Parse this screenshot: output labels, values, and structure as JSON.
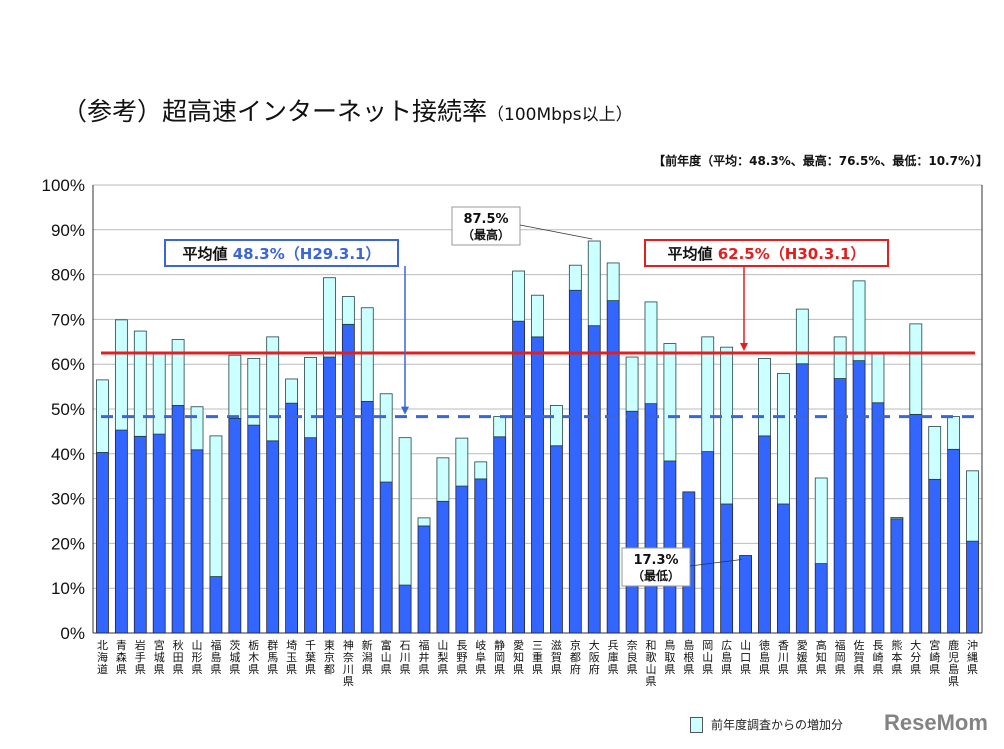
{
  "title": "（参考）超高速インターネット接続率",
  "title_suffix": "（100Mbps以上）",
  "note": "【前年度（平均：48.3%、最高：76.5%、最低：10.7%）】",
  "legend_label": "前年度調査からの増加分",
  "watermark": "ReseMom",
  "colors": {
    "base": "#3366ff",
    "increase": "#ccffff",
    "avg_current": "#e02020",
    "avg_prev": "#3a66d8"
  },
  "chart_data": {
    "type": "bar",
    "stacked": true,
    "ylim": [
      0,
      100
    ],
    "yticks": [
      "0%",
      "10%",
      "20%",
      "30%",
      "40%",
      "50%",
      "60%",
      "70%",
      "80%",
      "90%",
      "100%"
    ],
    "grid": true,
    "categories": [
      "北海道",
      "青森県",
      "岩手県",
      "宮城県",
      "秋田県",
      "山形県",
      "福島県",
      "茨城県",
      "栃木県",
      "群馬県",
      "埼玉県",
      "千葉県",
      "東京都",
      "神奈川県",
      "新潟県",
      "富山県",
      "石川県",
      "福井県",
      "山梨県",
      "長野県",
      "岐阜県",
      "静岡県",
      "愛知県",
      "三重県",
      "滋賀県",
      "京都府",
      "大阪府",
      "兵庫県",
      "奈良県",
      "和歌山県",
      "鳥取県",
      "島根県",
      "岡山県",
      "広島県",
      "山口県",
      "徳島県",
      "香川県",
      "愛媛県",
      "高知県",
      "福岡県",
      "佐賀県",
      "長崎県",
      "熊本県",
      "大分県",
      "宮崎県",
      "鹿児島県",
      "沖縄県"
    ],
    "series": [
      {
        "values": [
          40.3,
          45.3,
          43.9,
          44.4,
          50.8,
          40.9,
          12.6,
          47.9,
          46.4,
          42.9,
          51.3,
          43.6,
          61.6,
          68.9,
          51.7,
          33.7,
          10.7,
          23.9,
          29.4,
          32.8,
          34.4,
          43.8,
          69.6,
          66.1,
          41.8,
          76.5,
          68.6,
          74.2,
          49.5,
          51.2,
          38.4,
          31.5,
          40.5,
          28.8,
          17.3,
          44.0,
          28.8,
          60.1,
          15.5,
          56.8,
          60.8,
          51.4,
          25.5,
          48.8,
          34.3,
          41.0,
          20.5
        ]
      },
      {
        "name": "前年度調査からの増加分",
        "values": [
          16.2,
          24.6,
          23.5,
          18.1,
          14.7,
          9.6,
          31.4,
          14.1,
          14.9,
          23.2,
          5.4,
          17.9,
          17.7,
          6.2,
          20.9,
          19.7,
          32.9,
          1.8,
          9.7,
          10.7,
          3.8,
          4.5,
          11.2,
          9.3,
          9.0,
          5.6,
          18.9,
          8.4,
          12.1,
          22.7,
          26.2,
          0.0,
          25.6,
          35.0,
          0.0,
          17.3,
          29.1,
          12.2,
          19.1,
          9.3,
          17.8,
          10.9,
          0.3,
          20.2,
          11.8,
          7.3,
          15.7
        ]
      }
    ],
    "reference_lines": [
      {
        "label": "平均値",
        "value": 62.5,
        "value_label": "62.5%（H30.3.1）",
        "style": "solid"
      },
      {
        "label": "平均値",
        "value": 48.3,
        "value_label": "48.3%（H29.3.1）",
        "style": "dashed"
      }
    ],
    "annotations": [
      {
        "text": "87.5%",
        "sub": "（最高）",
        "category": "大阪府"
      },
      {
        "text": "17.3%",
        "sub": "（最低）",
        "category": "山口県"
      }
    ]
  }
}
